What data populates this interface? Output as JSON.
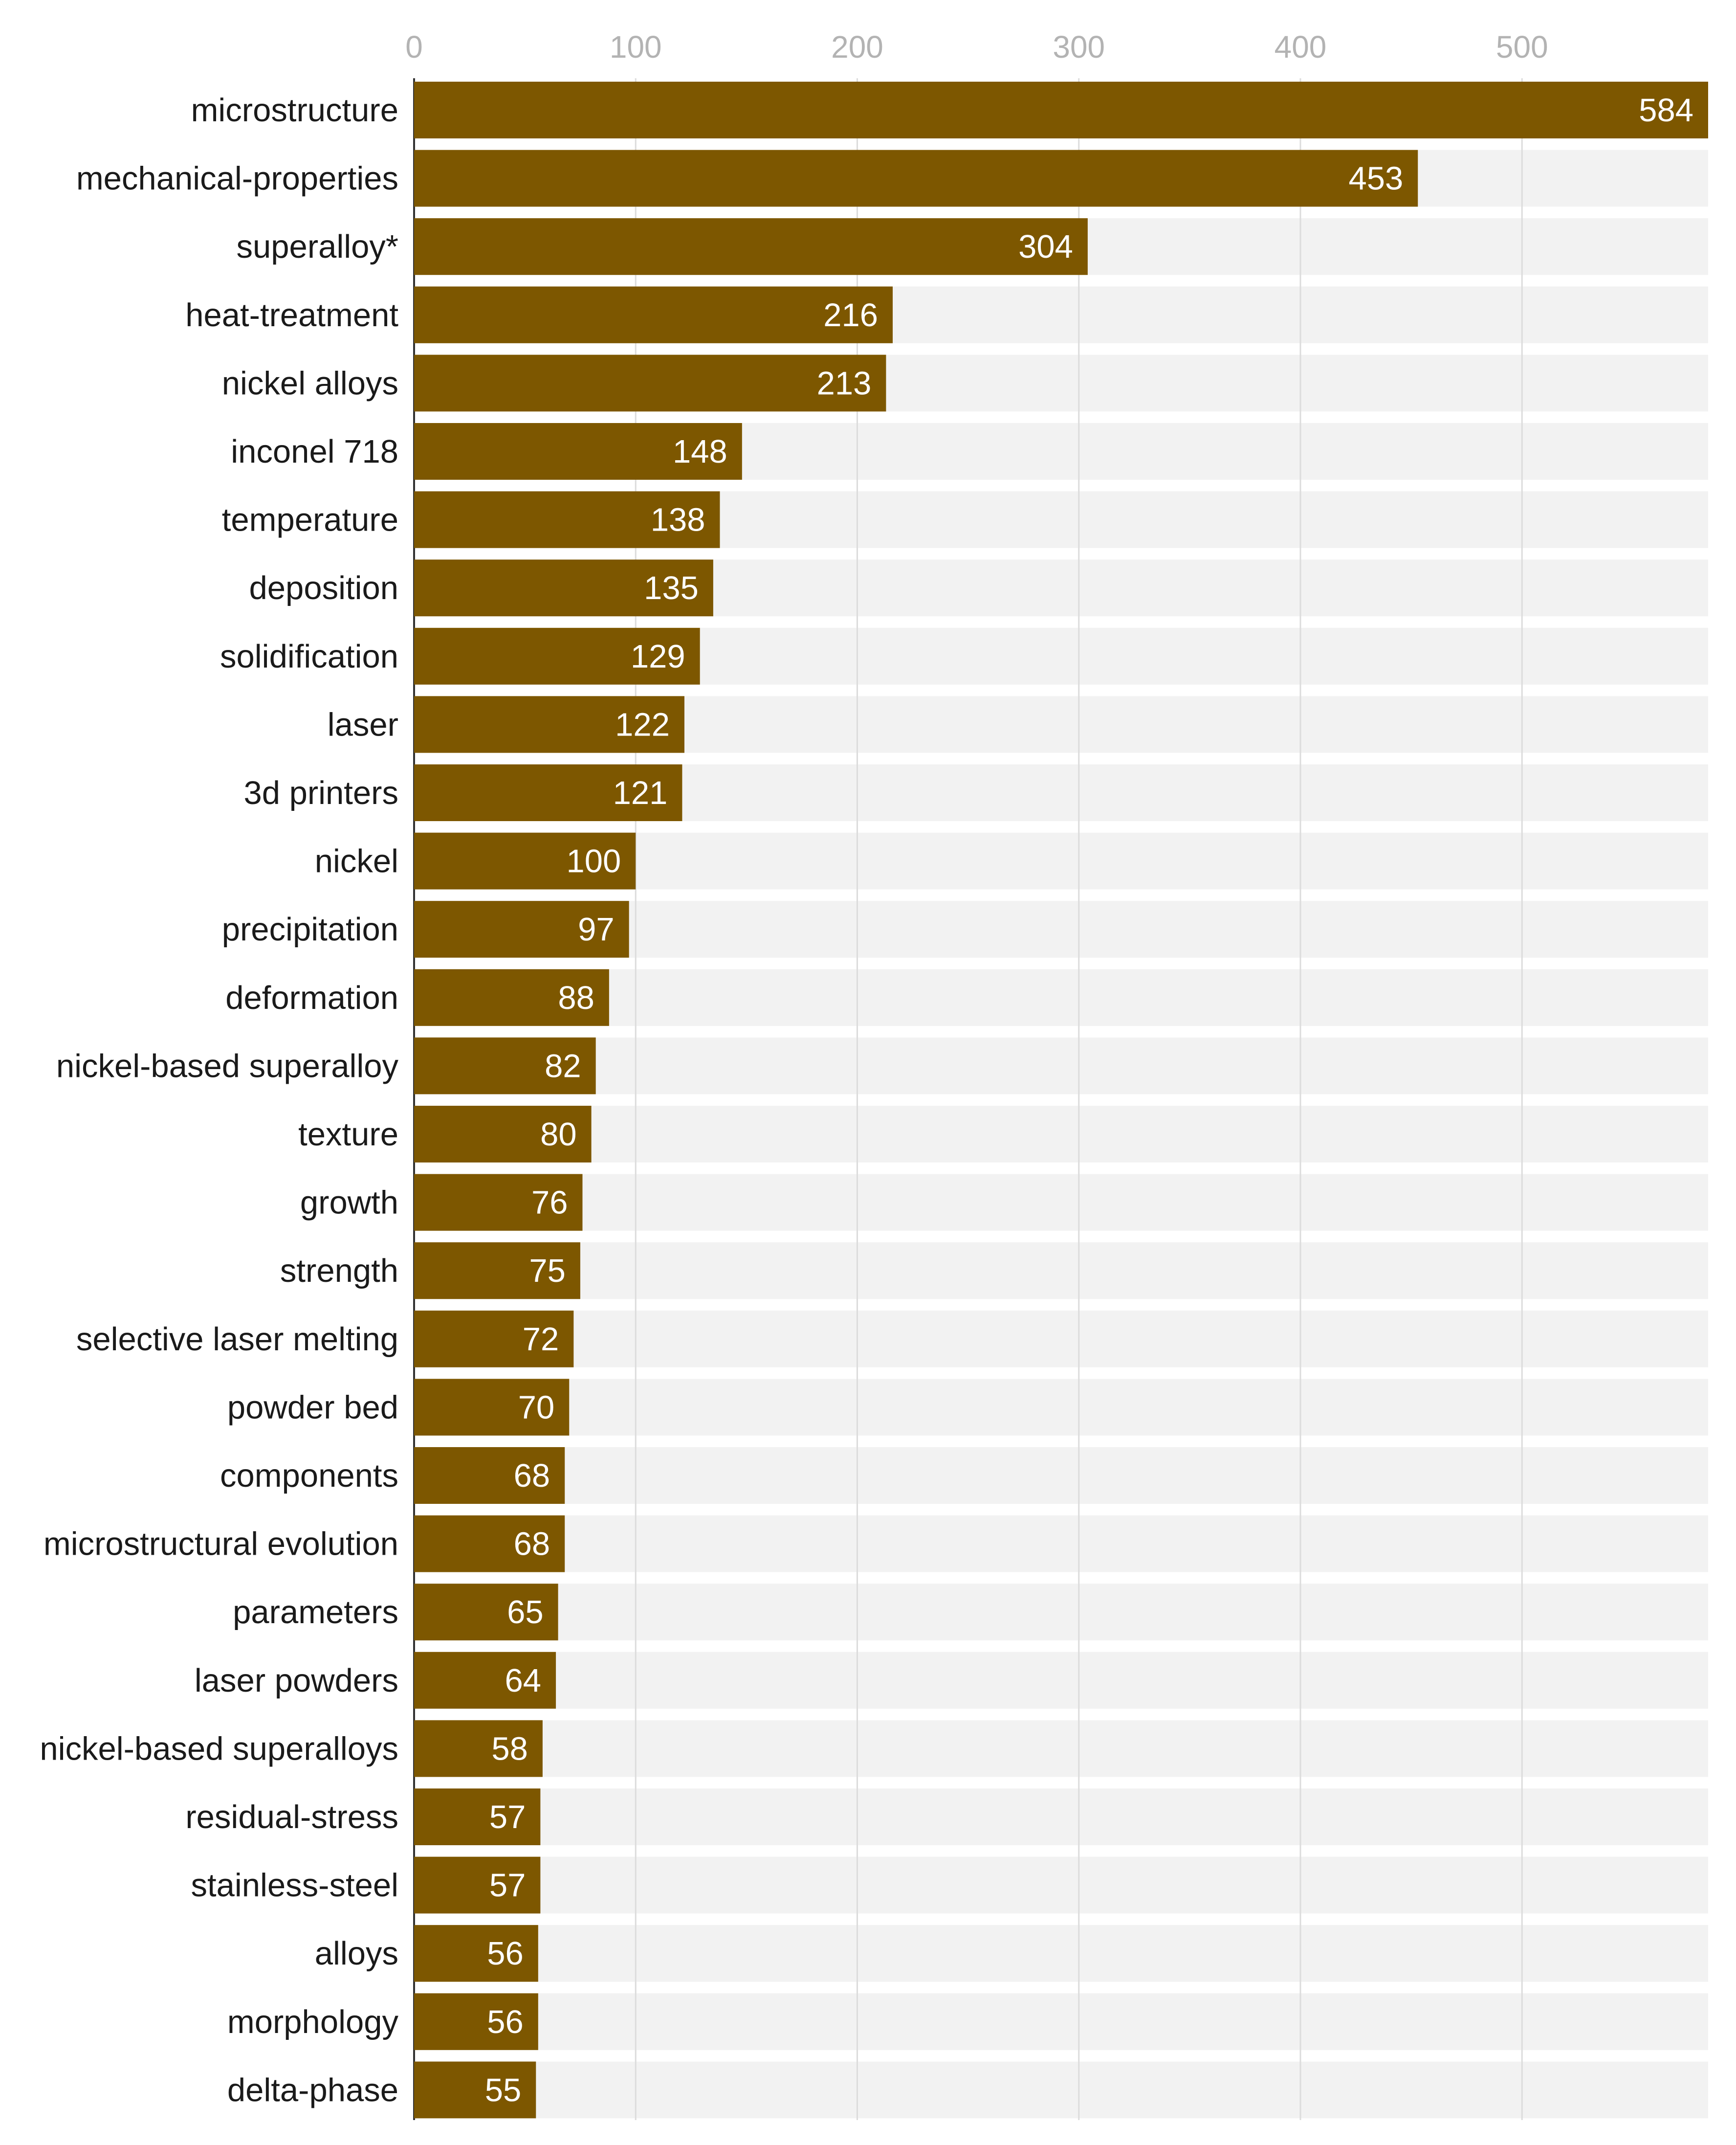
{
  "chart_data": {
    "type": "bar",
    "orientation": "horizontal",
    "title": "",
    "xlabel": "",
    "ylabel": "",
    "xlim": [
      0,
      584
    ],
    "x_ticks": [
      0,
      100,
      200,
      300,
      400,
      500
    ],
    "x_tick_labels": [
      "0",
      "100",
      "200",
      "300",
      "400",
      "500"
    ],
    "grid": true,
    "bar_color": "#7d5700",
    "track_color": "#f2f2f2",
    "grid_color": "#dcdcdc",
    "categories": [
      "microstructure",
      "mechanical-properties",
      "superalloy*",
      "heat-treatment",
      "nickel alloys",
      "inconel 718",
      "temperature",
      "deposition",
      "solidification",
      "laser",
      "3d printers",
      "nickel",
      "precipitation",
      "deformation",
      "nickel-based superalloy",
      "texture",
      "growth",
      "strength",
      "selective laser melting",
      "powder bed",
      "components",
      "microstructural evolution",
      "parameters",
      "laser powders",
      "nickel-based superalloys",
      "residual-stress",
      "stainless-steel",
      "alloys",
      "morphology",
      "delta-phase"
    ],
    "values": [
      584,
      453,
      304,
      216,
      213,
      148,
      138,
      135,
      129,
      122,
      121,
      100,
      97,
      88,
      82,
      80,
      76,
      75,
      72,
      70,
      68,
      68,
      65,
      64,
      58,
      57,
      57,
      56,
      56,
      55
    ],
    "value_labels": [
      "584",
      "453",
      "304",
      "216",
      "213",
      "148",
      "138",
      "135",
      "129",
      "122",
      "121",
      "100",
      "97",
      "88",
      "82",
      "80",
      "76",
      "75",
      "72",
      "70",
      "68",
      "68",
      "65",
      "64",
      "58",
      "57",
      "57",
      "56",
      "56",
      "55"
    ]
  }
}
